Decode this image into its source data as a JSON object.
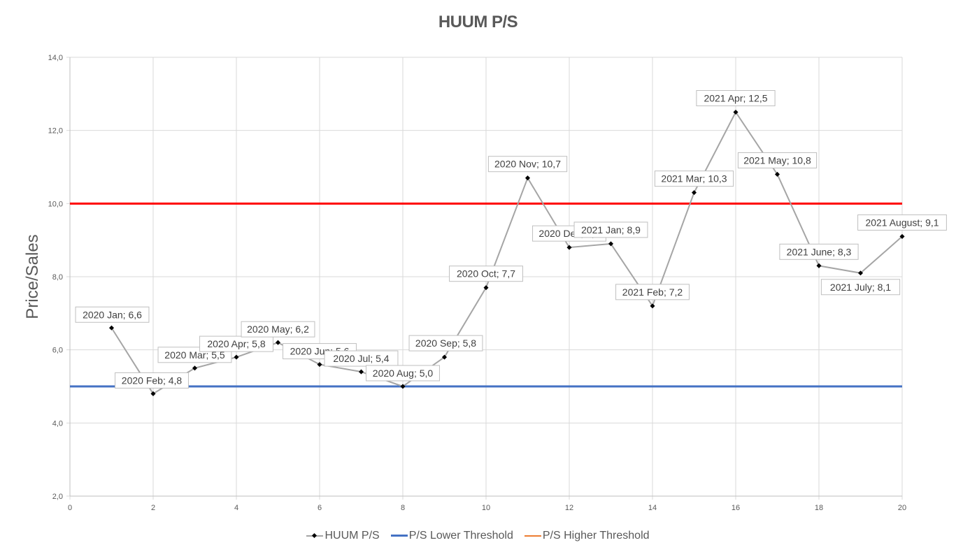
{
  "chart_data": {
    "type": "line",
    "title": "HUUM P/S",
    "xlabel": "",
    "ylabel": "Price/Sales",
    "xlim": [
      0,
      20
    ],
    "ylim": [
      2.0,
      14.0
    ],
    "x_ticks": [
      "0",
      "2",
      "4",
      "6",
      "8",
      "10",
      "12",
      "14",
      "16",
      "18",
      "20"
    ],
    "y_ticks": [
      "2,0",
      "4,0",
      "6,0",
      "8,0",
      "10,0",
      "12,0",
      "14,0"
    ],
    "grid": true,
    "legend_position": "bottom",
    "series": [
      {
        "name": "HUUM P/S",
        "color": "#a5a5a5",
        "marker": "diamond",
        "x": [
          1,
          2,
          3,
          4,
          5,
          6,
          7,
          8,
          9,
          10,
          11,
          12,
          13,
          14,
          15,
          16,
          17,
          18,
          19,
          20
        ],
        "values": [
          6.6,
          4.8,
          5.5,
          5.8,
          6.2,
          5.6,
          5.4,
          5.0,
          5.8,
          7.7,
          10.7,
          8.8,
          8.9,
          7.2,
          10.3,
          12.5,
          10.8,
          8.3,
          8.1,
          9.1
        ],
        "labels": [
          "2020 Jan; 6,6",
          "2020 Feb; 4,8",
          "2020 Mar; 5,5",
          "2020 Apr; 5,8",
          "2020 May; 6,2",
          "2020 Jun; 5,6",
          "2020 Jul; 5,4",
          "2020 Aug; 5,0",
          "2020 Sep; 5,8",
          "2020 Oct; 7,7",
          "2020 Nov; 10,7",
          "2020 Dec; 8,8",
          "2021 Jan; 8,9",
          "2021 Feb; 7,2",
          "2021 Mar; 10,3",
          "2021 Apr; 12,5",
          "2021 May; 10,8",
          "2021 June; 8,3",
          "2021 July; 8,1",
          "2021 August; 9,1"
        ]
      },
      {
        "name": "P/S Lower Threshold",
        "color": "#4472c4",
        "x": [
          0,
          20
        ],
        "values": [
          5.0,
          5.0
        ]
      },
      {
        "name": "P/S Higher Threshold",
        "color": "#ed7d31",
        "x": [
          0,
          20
        ],
        "values": [
          10.0,
          10.0
        ],
        "rendered_color": "#ff0000"
      }
    ]
  },
  "legend": {
    "items": [
      {
        "label": "HUUM P/S",
        "color": "#a5a5a5"
      },
      {
        "label": "P/S Lower Threshold",
        "color": "#4472c4"
      },
      {
        "label": "P/S Higher Threshold",
        "color": "#ed7d31"
      }
    ]
  }
}
